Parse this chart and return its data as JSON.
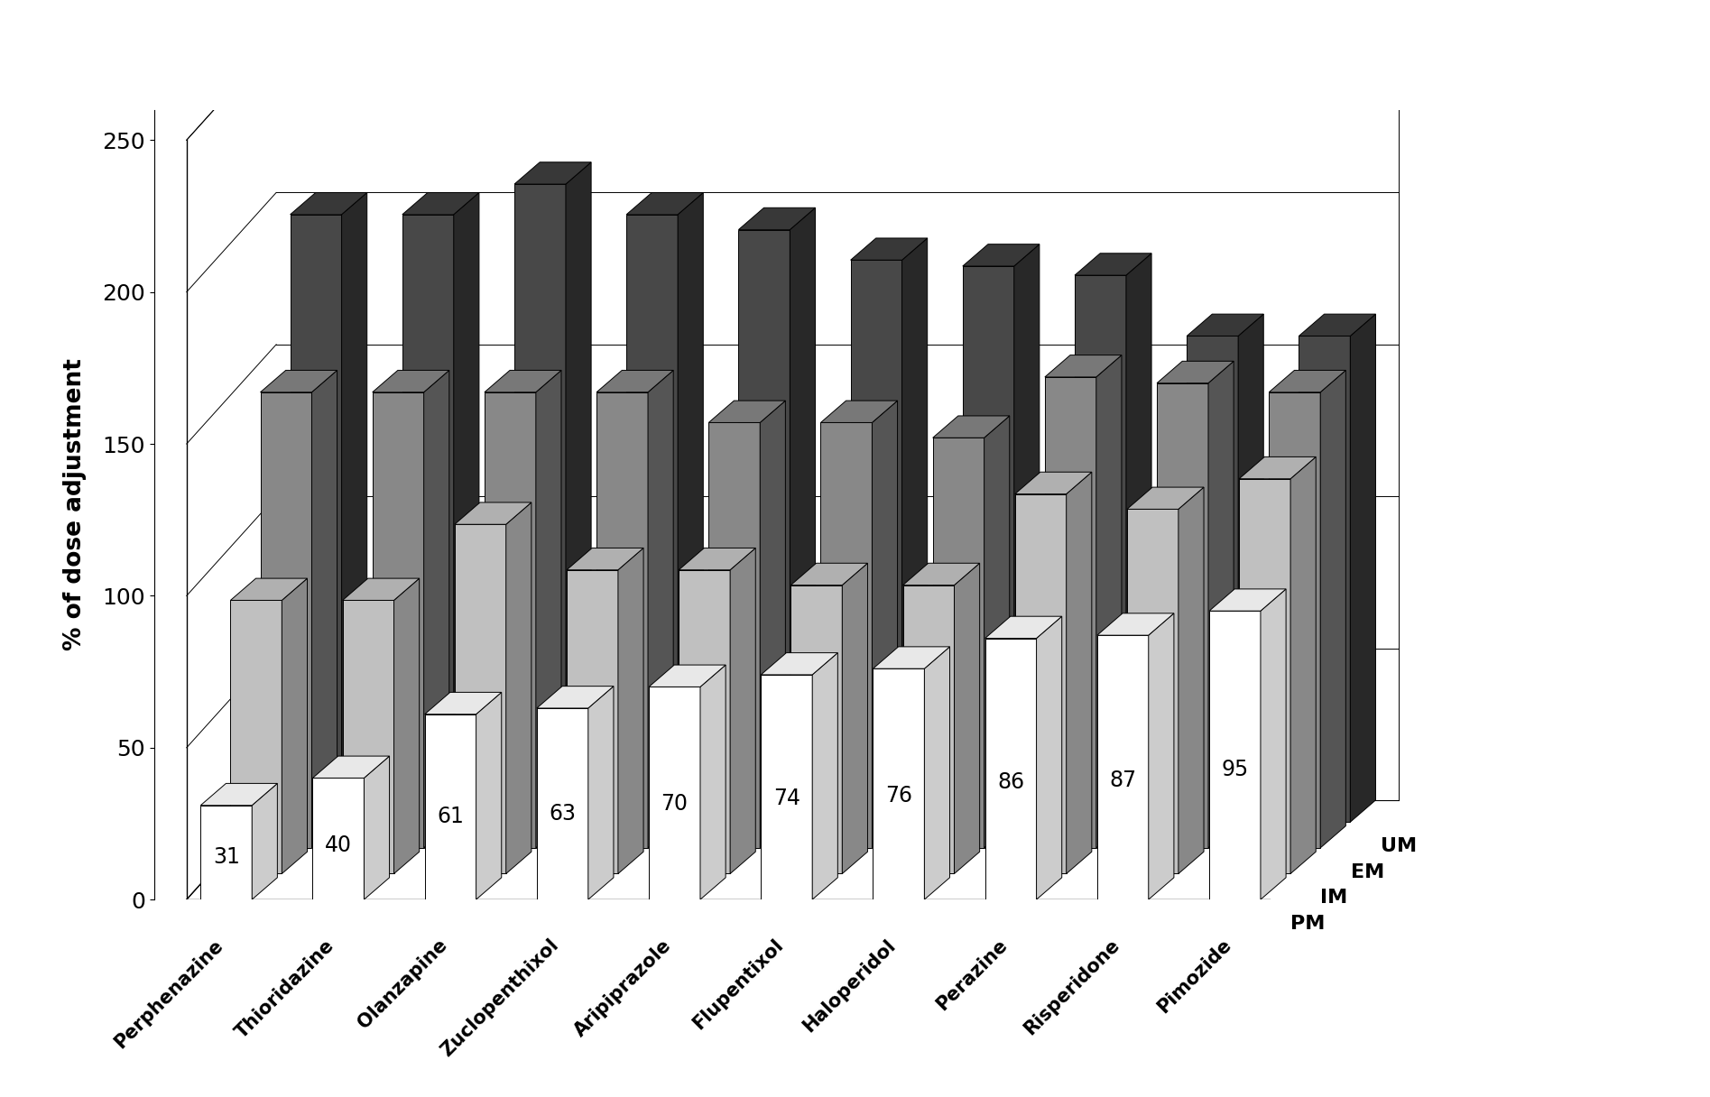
{
  "drugs": [
    "Perphenazine",
    "Thioridazine",
    "Olanzapine",
    "Zuclopenthixol",
    "Aripiprazole",
    "Flupentixol",
    "Haloperidol",
    "Perazine",
    "Risperidone",
    "Pimozide"
  ],
  "groups": [
    "PM",
    "IM",
    "EM",
    "UM"
  ],
  "values": {
    "Perphenazine": [
      31,
      90,
      150,
      200
    ],
    "Thioridazine": [
      40,
      90,
      150,
      200
    ],
    "Olanzapine": [
      61,
      115,
      150,
      210
    ],
    "Zuclopenthixol": [
      63,
      100,
      150,
      200
    ],
    "Aripiprazole": [
      70,
      100,
      140,
      195
    ],
    "Flupentixol": [
      74,
      95,
      140,
      185
    ],
    "Haloperidol": [
      76,
      95,
      135,
      183
    ],
    "Perazine": [
      86,
      125,
      155,
      180
    ],
    "Risperidone": [
      87,
      120,
      153,
      160
    ],
    "Pimozide": [
      95,
      130,
      150,
      160
    ]
  },
  "pm_labels": [
    31,
    40,
    61,
    63,
    70,
    74,
    76,
    86,
    87,
    95
  ],
  "color_map": {
    "PM": [
      "#ffffff",
      "#cccccc",
      "#e8e8e8"
    ],
    "IM": [
      "#c0c0c0",
      "#888888",
      "#b0b0b0"
    ],
    "EM": [
      "#888888",
      "#555555",
      "#787878"
    ],
    "UM": [
      "#484848",
      "#282828",
      "#383838"
    ]
  },
  "ylabel": "% of dose adjustment",
  "ylim": [
    0,
    260
  ],
  "yticks": [
    0,
    50,
    100,
    150,
    200,
    250
  ],
  "background_color": "#ffffff"
}
